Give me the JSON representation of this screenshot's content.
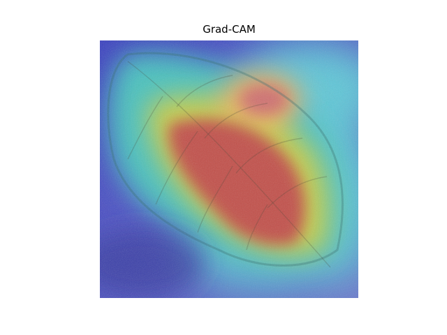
{
  "figure": {
    "title": "Grad-CAM",
    "image_subject": "leaf-photo",
    "overlay": "heatmap-jet-colormap"
  }
}
